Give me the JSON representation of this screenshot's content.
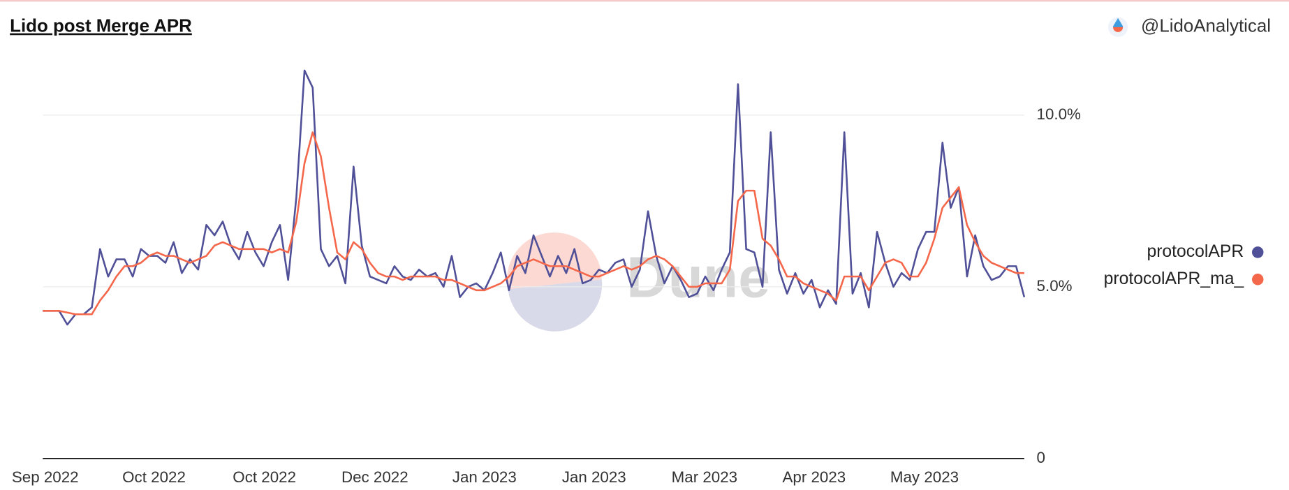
{
  "chart_data": {
    "type": "line",
    "title": "Lido post Merge APR",
    "author": "@LidoAnalytical",
    "watermark": "Dune",
    "xlim": [
      0,
      120
    ],
    "xticks": [
      {
        "value": 0.3,
        "label": "Sep 2022"
      },
      {
        "value": 13.6,
        "label": "Oct 2022"
      },
      {
        "value": 27.1,
        "label": "Oct 2022"
      },
      {
        "value": 40.6,
        "label": "Dec 2022"
      },
      {
        "value": 54,
        "label": "Jan 2023"
      },
      {
        "value": 67.4,
        "label": "Jan 2023"
      },
      {
        "value": 80.9,
        "label": "Mar 2023"
      },
      {
        "value": 94.3,
        "label": "Apr 2023"
      },
      {
        "value": 107.8,
        "label": "May 2023"
      }
    ],
    "ylim": [
      0,
      11.7
    ],
    "yticks": [
      0,
      {
        "value": 5,
        "label": "5.0%"
      },
      {
        "value": 10,
        "label": "10.0%"
      }
    ],
    "grid": true,
    "legend": "right",
    "series": [
      {
        "name": "protocolAPR",
        "color": "#4f5097",
        "values": [
          4.3,
          4.3,
          4.3,
          3.9,
          4.2,
          4.2,
          4.4,
          6.1,
          5.3,
          5.8,
          5.8,
          5.3,
          6.1,
          5.9,
          5.9,
          5.7,
          6.3,
          5.4,
          5.8,
          5.5,
          6.8,
          6.5,
          6.9,
          6.2,
          5.8,
          6.6,
          6.0,
          5.6,
          6.3,
          6.8,
          5.2,
          7.6,
          11.3,
          10.8,
          6.1,
          5.6,
          5.9,
          5.1,
          8.5,
          6.2,
          5.3,
          5.2,
          5.1,
          5.6,
          5.3,
          5.2,
          5.5,
          5.3,
          5.4,
          5.0,
          5.9,
          4.7,
          5.0,
          5.1,
          4.9,
          5.4,
          6.0,
          4.9,
          5.9,
          5.4,
          6.5,
          5.9,
          5.3,
          5.9,
          5.4,
          6.1,
          5.1,
          5.2,
          5.5,
          5.4,
          5.7,
          5.8,
          5.0,
          5.5,
          7.2,
          5.9,
          5.1,
          5.6,
          5.2,
          4.7,
          4.8,
          5.3,
          4.9,
          5.5,
          6.0,
          10.9,
          6.1,
          6.0,
          5.0,
          9.5,
          5.5,
          4.8,
          5.4,
          4.8,
          5.2,
          4.4,
          4.9,
          4.5,
          9.5,
          4.8,
          5.4,
          4.4,
          6.6,
          5.7,
          5.0,
          5.4,
          5.2,
          6.1,
          6.6,
          6.6,
          9.2,
          7.3,
          7.9,
          5.3,
          6.5,
          5.6,
          5.2,
          5.3,
          5.6,
          5.6,
          4.7
        ]
      },
      {
        "name": "protocolAPR_ma_",
        "color": "#f5674a",
        "values": [
          4.3,
          4.3,
          4.3,
          4.25,
          4.2,
          4.2,
          4.2,
          4.6,
          4.9,
          5.3,
          5.6,
          5.6,
          5.7,
          5.9,
          6.0,
          5.9,
          5.9,
          5.8,
          5.7,
          5.8,
          5.9,
          6.2,
          6.3,
          6.2,
          6.1,
          6.1,
          6.1,
          6.1,
          6.0,
          6.1,
          6.0,
          6.9,
          8.6,
          9.5,
          8.8,
          7.3,
          6.0,
          5.8,
          6.3,
          6.1,
          5.7,
          5.4,
          5.3,
          5.3,
          5.2,
          5.3,
          5.3,
          5.3,
          5.3,
          5.2,
          5.2,
          5.1,
          5.0,
          4.9,
          4.9,
          5.0,
          5.1,
          5.3,
          5.6,
          5.7,
          5.8,
          5.7,
          5.6,
          5.6,
          5.6,
          5.5,
          5.4,
          5.3,
          5.3,
          5.4,
          5.5,
          5.6,
          5.5,
          5.6,
          5.8,
          5.9,
          5.8,
          5.6,
          5.3,
          5.0,
          5.0,
          5.1,
          5.1,
          5.1,
          5.5,
          7.5,
          7.8,
          7.8,
          6.4,
          6.2,
          5.8,
          5.3,
          5.3,
          5.1,
          5.0,
          4.9,
          4.8,
          4.6,
          5.3,
          5.3,
          5.3,
          4.9,
          5.3,
          5.7,
          5.8,
          5.7,
          5.3,
          5.3,
          5.7,
          6.4,
          7.3,
          7.6,
          7.9,
          6.8,
          6.3,
          5.9,
          5.7,
          5.6,
          5.5,
          5.4,
          5.4
        ]
      }
    ]
  }
}
